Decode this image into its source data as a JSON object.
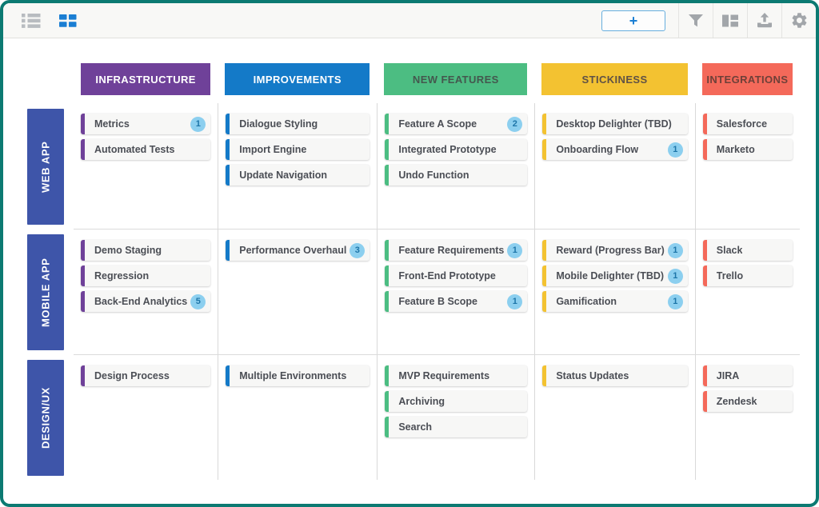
{
  "toolbar": {
    "left_icons": [
      {
        "name": "list-view-icon",
        "active": false
      },
      {
        "name": "grid-view-icon",
        "active": true
      }
    ],
    "add_button_label": "+",
    "right_icons": [
      {
        "name": "filter-icon"
      },
      {
        "name": "layout-columns-icon"
      },
      {
        "name": "upload-icon"
      },
      {
        "name": "gear-icon"
      }
    ]
  },
  "colors": {
    "frame_border": "#0c7a72",
    "active_icon_blue": "#1a7ed3",
    "inactive_icon_gray": "#a2a6aa",
    "row_label_bg": "#3e55a9",
    "badge_bg": "#8ccfef",
    "badge_text": "#1d75a8",
    "grid_line": "#d9d9d9"
  },
  "board": {
    "columns": [
      {
        "label": "INFRASTRUCTURE",
        "color": "#6f4199",
        "text_color": "#ffffff"
      },
      {
        "label": "IMPROVEMENTS",
        "color": "#147ac8",
        "text_color": "#ffffff"
      },
      {
        "label": "NEW FEATURES",
        "color": "#4cbd82",
        "text_color": "#44584e"
      },
      {
        "label": "STICKINESS",
        "color": "#f3c231",
        "text_color": "#5f5146"
      },
      {
        "label": "INTEGRATIONS",
        "color": "#f4695a",
        "text_color": "#6e4038"
      }
    ],
    "rows": [
      {
        "label": "WEB APP",
        "cells": [
          [
            {
              "title": "Metrics",
              "badge": "1"
            },
            {
              "title": "Automated Tests"
            }
          ],
          [
            {
              "title": "Dialogue Styling"
            },
            {
              "title": "Import Engine"
            },
            {
              "title": "Update Navigation"
            }
          ],
          [
            {
              "title": "Feature A Scope",
              "badge": "2"
            },
            {
              "title": "Integrated Prototype"
            },
            {
              "title": "Undo Function"
            }
          ],
          [
            {
              "title": "Desktop Delighter (TBD)"
            },
            {
              "title": "Onboarding Flow",
              "badge": "1"
            }
          ],
          [
            {
              "title": "Salesforce"
            },
            {
              "title": "Marketo"
            }
          ]
        ]
      },
      {
        "label": "MOBILE APP",
        "cells": [
          [
            {
              "title": "Demo Staging"
            },
            {
              "title": "Regression"
            },
            {
              "title": "Back-End Analytics",
              "badge": "5"
            }
          ],
          [
            {
              "title": "Performance Overhaul",
              "badge": "3"
            }
          ],
          [
            {
              "title": "Feature Requirements",
              "badge": "1"
            },
            {
              "title": "Front-End Prototype"
            },
            {
              "title": "Feature B Scope",
              "badge": "1"
            }
          ],
          [
            {
              "title": "Reward (Progress Bar)",
              "badge": "1"
            },
            {
              "title": "Mobile Delighter (TBD)",
              "badge": "1"
            },
            {
              "title": "Gamification",
              "badge": "1"
            }
          ],
          [
            {
              "title": "Slack"
            },
            {
              "title": "Trello"
            }
          ]
        ]
      },
      {
        "label": "DESIGN/UX",
        "cells": [
          [
            {
              "title": "Design Process"
            }
          ],
          [
            {
              "title": "Multiple Environments"
            }
          ],
          [
            {
              "title": "MVP Requirements"
            },
            {
              "title": "Archiving"
            },
            {
              "title": "Search"
            }
          ],
          [
            {
              "title": "Status Updates"
            }
          ],
          [
            {
              "title": "JIRA"
            },
            {
              "title": "Zendesk"
            }
          ]
        ]
      }
    ]
  }
}
